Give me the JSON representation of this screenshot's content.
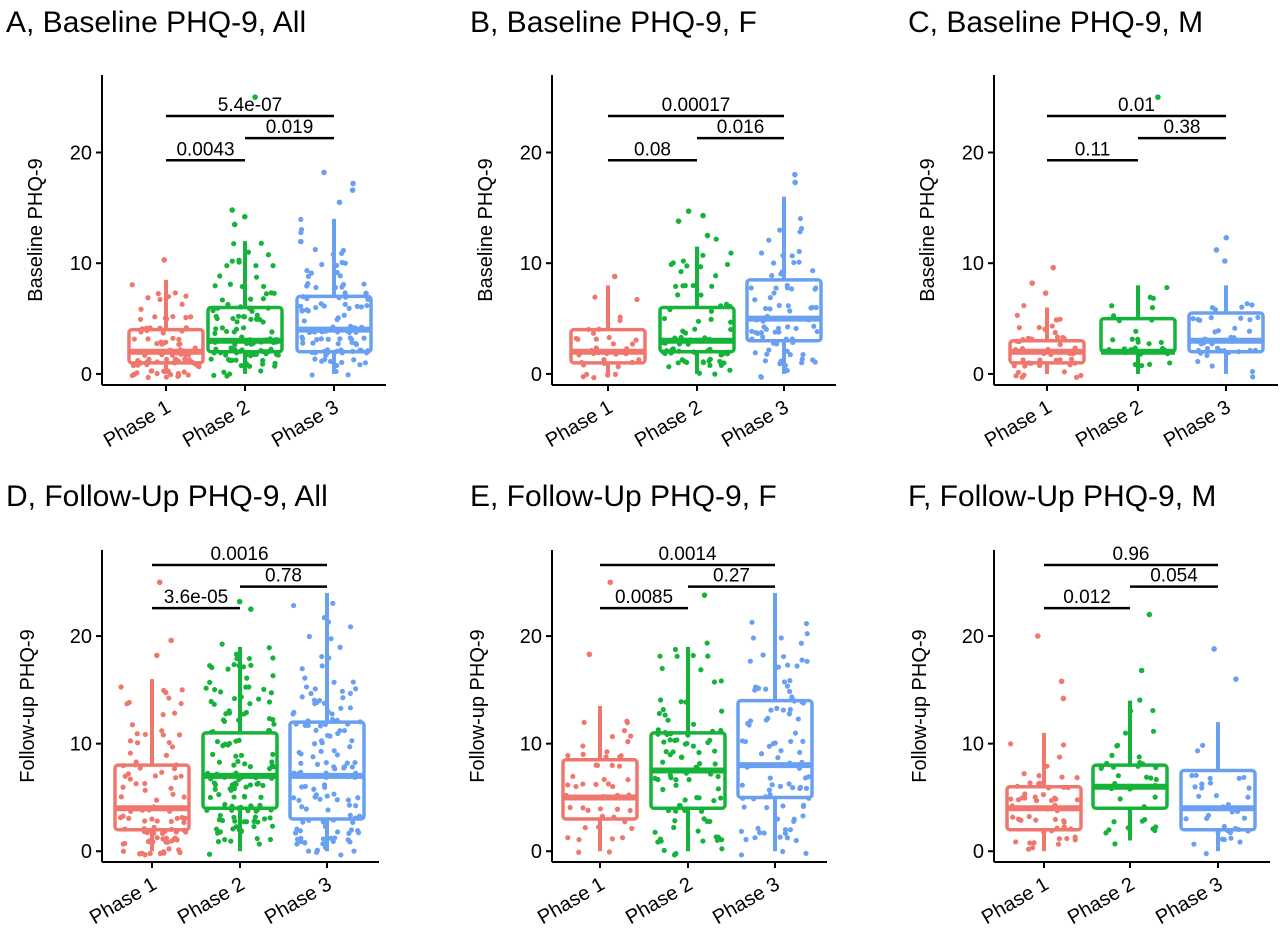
{
  "colors": {
    "Phase 1": "#f0776d",
    "Phase 2": "#16b33a",
    "Phase 3": "#6aa0f2"
  },
  "chart_data": [
    {
      "type": "box",
      "title": "A, Baseline PHQ-9, All",
      "ylabel": "Baseline PHQ-9",
      "xlabel": "",
      "categories": [
        "Phase 1",
        "Phase 2",
        "Phase 3"
      ],
      "ylim": [
        -1,
        27
      ],
      "yticks": [
        0,
        10,
        20
      ],
      "boxes": [
        {
          "category": "Phase 1",
          "q1": 1,
          "median": 2,
          "q3": 4,
          "whisker_low": 0,
          "whisker_high": 8.5,
          "n_points": 90,
          "outliers": [
            10.3
          ]
        },
        {
          "category": "Phase 2",
          "q1": 2,
          "median": 3,
          "q3": 6,
          "whisker_low": 0,
          "whisker_high": 12,
          "n_points": 110,
          "outliers": [
            13.5,
            14.2,
            14.8,
            25
          ]
        },
        {
          "category": "Phase 3",
          "q1": 2,
          "median": 4,
          "q3": 7,
          "whisker_low": 0,
          "whisker_high": 14,
          "n_points": 110,
          "outliers": [
            15.5,
            16.6,
            17.2,
            18.2
          ]
        }
      ],
      "comparisons": [
        {
          "from": "Phase 1",
          "to": "Phase 2",
          "label": "0.0043",
          "y": 19.3
        },
        {
          "from": "Phase 2",
          "to": "Phase 3",
          "label": "0.019",
          "y": 21.3
        },
        {
          "from": "Phase 1",
          "to": "Phase 3",
          "label": "5.4e-07",
          "y": 23.3
        }
      ]
    },
    {
      "type": "box",
      "title": "B, Baseline PHQ-9, F",
      "ylabel": "Baseline PHQ-9",
      "xlabel": "",
      "categories": [
        "Phase 1",
        "Phase 2",
        "Phase 3"
      ],
      "ylim": [
        -1,
        27
      ],
      "yticks": [
        0,
        10,
        20
      ],
      "boxes": [
        {
          "category": "Phase 1",
          "q1": 1,
          "median": 2,
          "q3": 4,
          "whisker_low": 0,
          "whisker_high": 8,
          "n_points": 40,
          "outliers": [
            8.8
          ]
        },
        {
          "category": "Phase 2",
          "q1": 2,
          "median": 3,
          "q3": 6,
          "whisker_low": 0,
          "whisker_high": 11.5,
          "n_points": 75,
          "outliers": [
            12.5,
            13.8,
            14.3,
            14.7
          ]
        },
        {
          "category": "Phase 3",
          "q1": 3,
          "median": 5,
          "q3": 8.5,
          "whisker_low": 0,
          "whisker_high": 16,
          "n_points": 75,
          "outliers": [
            17.3,
            18
          ]
        }
      ],
      "comparisons": [
        {
          "from": "Phase 1",
          "to": "Phase 2",
          "label": "0.08",
          "y": 19.3
        },
        {
          "from": "Phase 2",
          "to": "Phase 3",
          "label": "0.016",
          "y": 21.3
        },
        {
          "from": "Phase 1",
          "to": "Phase 3",
          "label": "0.00017",
          "y": 23.3
        }
      ]
    },
    {
      "type": "box",
      "title": "C, Baseline PHQ-9, M",
      "ylabel": "Baseline PHQ-9",
      "xlabel": "",
      "categories": [
        "Phase 1",
        "Phase 2",
        "Phase 3"
      ],
      "ylim": [
        -1,
        27
      ],
      "yticks": [
        0,
        10,
        20
      ],
      "boxes": [
        {
          "category": "Phase 1",
          "q1": 1,
          "median": 2,
          "q3": 3,
          "whisker_low": 0,
          "whisker_high": 6,
          "n_points": 50,
          "outliers": [
            7.3,
            8.2,
            9.6
          ]
        },
        {
          "category": "Phase 2",
          "q1": 2,
          "median": 2,
          "q3": 5,
          "whisker_low": 0,
          "whisker_high": 8,
          "n_points": 32,
          "outliers": [
            25
          ]
        },
        {
          "category": "Phase 3",
          "q1": 2,
          "median": 3,
          "q3": 5.5,
          "whisker_low": 0,
          "whisker_high": 8,
          "n_points": 40,
          "outliers": [
            10.2,
            11.2,
            12.3
          ]
        }
      ],
      "comparisons": [
        {
          "from": "Phase 1",
          "to": "Phase 2",
          "label": "0.11",
          "y": 19.3
        },
        {
          "from": "Phase 2",
          "to": "Phase 3",
          "label": "0.38",
          "y": 21.3
        },
        {
          "from": "Phase 1",
          "to": "Phase 3",
          "label": "0.01",
          "y": 23.3
        }
      ]
    },
    {
      "type": "box",
      "title": "D, Follow-Up PHQ-9, All",
      "ylabel": "Follow-up PHQ-9",
      "xlabel": "",
      "categories": [
        "Phase 1",
        "Phase 2",
        "Phase 3"
      ],
      "ylim": [
        -1,
        28
      ],
      "yticks": [
        0,
        10,
        20
      ],
      "boxes": [
        {
          "category": "Phase 1",
          "q1": 2,
          "median": 4,
          "q3": 8,
          "whisker_low": 0,
          "whisker_high": 16,
          "n_points": 100,
          "outliers": [
            18.2,
            19.6,
            25
          ]
        },
        {
          "category": "Phase 2",
          "q1": 4,
          "median": 7,
          "q3": 11,
          "whisker_low": 0,
          "whisker_high": 19,
          "n_points": 140,
          "outliers": [
            22.5,
            23.2
          ]
        },
        {
          "category": "Phase 3",
          "q1": 3,
          "median": 7,
          "q3": 12,
          "whisker_low": 0,
          "whisker_high": 24,
          "n_points": 140,
          "outliers": []
        }
      ],
      "comparisons": [
        {
          "from": "Phase 1",
          "to": "Phase 2",
          "label": "3.6e-05",
          "y": 22.6
        },
        {
          "from": "Phase 2",
          "to": "Phase 3",
          "label": "0.78",
          "y": 24.6
        },
        {
          "from": "Phase 1",
          "to": "Phase 3",
          "label": "0.0016",
          "y": 26.6
        }
      ]
    },
    {
      "type": "box",
      "title": "E, Follow-Up PHQ-9, F",
      "ylabel": "Follow-up PHQ-9",
      "xlabel": "",
      "categories": [
        "Phase 1",
        "Phase 2",
        "Phase 3"
      ],
      "ylim": [
        -1,
        28
      ],
      "yticks": [
        0,
        10,
        20
      ],
      "boxes": [
        {
          "category": "Phase 1",
          "q1": 3,
          "median": 5,
          "q3": 8.5,
          "whisker_low": 0,
          "whisker_high": 13.5,
          "n_points": 50,
          "outliers": [
            18.3,
            25
          ]
        },
        {
          "category": "Phase 2",
          "q1": 4,
          "median": 7.5,
          "q3": 11,
          "whisker_low": 0,
          "whisker_high": 19,
          "n_points": 90,
          "outliers": [
            23.8
          ]
        },
        {
          "category": "Phase 3",
          "q1": 5,
          "median": 8,
          "q3": 14,
          "whisker_low": 0,
          "whisker_high": 24,
          "n_points": 95,
          "outliers": []
        }
      ],
      "comparisons": [
        {
          "from": "Phase 1",
          "to": "Phase 2",
          "label": "0.0085",
          "y": 22.6
        },
        {
          "from": "Phase 2",
          "to": "Phase 3",
          "label": "0.27",
          "y": 24.6
        },
        {
          "from": "Phase 1",
          "to": "Phase 3",
          "label": "0.0014",
          "y": 26.6
        }
      ]
    },
    {
      "type": "box",
      "title": "F, Follow-Up PHQ-9, M",
      "ylabel": "Follow-up PHQ-9",
      "xlabel": "",
      "categories": [
        "Phase 1",
        "Phase 2",
        "Phase 3"
      ],
      "ylim": [
        -1,
        28
      ],
      "yticks": [
        0,
        10,
        20
      ],
      "boxes": [
        {
          "category": "Phase 1",
          "q1": 2,
          "median": 4,
          "q3": 6,
          "whisker_low": 0,
          "whisker_high": 11,
          "n_points": 55,
          "outliers": [
            14.2,
            15.8,
            20
          ]
        },
        {
          "category": "Phase 2",
          "q1": 4,
          "median": 6,
          "q3": 8,
          "whisker_low": 1,
          "whisker_high": 14,
          "n_points": 40,
          "outliers": [
            16.8,
            22
          ]
        },
        {
          "category": "Phase 3",
          "q1": 2,
          "median": 4,
          "q3": 7.5,
          "whisker_low": 0,
          "whisker_high": 12,
          "n_points": 40,
          "outliers": [
            16,
            18.8
          ]
        }
      ],
      "comparisons": [
        {
          "from": "Phase 1",
          "to": "Phase 2",
          "label": "0.012",
          "y": 22.6
        },
        {
          "from": "Phase 2",
          "to": "Phase 3",
          "label": "0.054",
          "y": 24.6
        },
        {
          "from": "Phase 1",
          "to": "Phase 3",
          "label": "0.96",
          "y": 26.6
        }
      ]
    }
  ]
}
